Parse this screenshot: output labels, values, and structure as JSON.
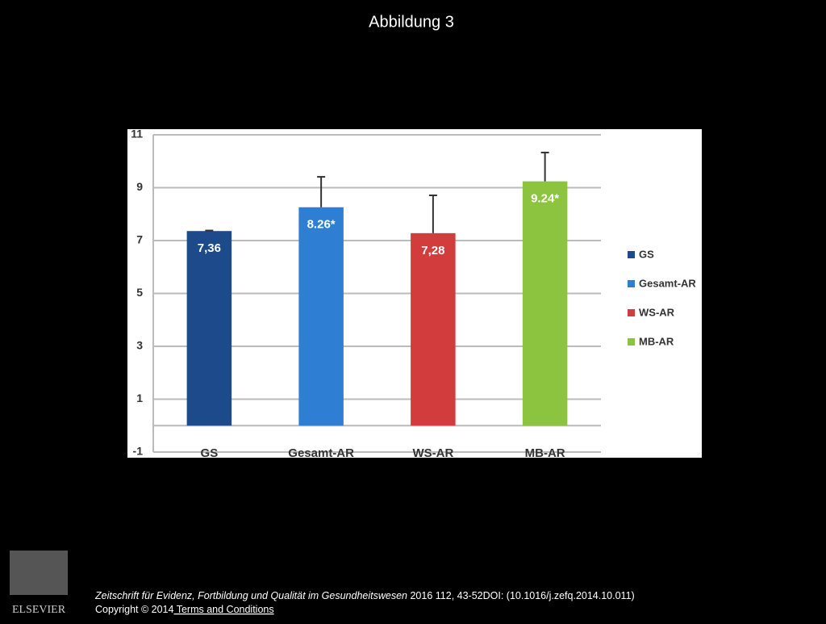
{
  "slide_title": "Abbildung 3",
  "chart_data": {
    "type": "bar",
    "categories": [
      "GS",
      "Gesamt-AR",
      "WS-AR",
      "MB-AR"
    ],
    "values": [
      7.36,
      8.26,
      7.28,
      9.24
    ],
    "value_labels": [
      "7,36",
      "8.26*",
      "7,28",
      "9.24*"
    ],
    "errors": [
      0.02,
      1.15,
      1.43,
      1.09
    ],
    "colors": [
      "#1d4a8a",
      "#2e7fd4",
      "#d23c3c",
      "#8cc43f"
    ],
    "ylim": [
      -1,
      11
    ],
    "yticks": [
      -1,
      1,
      3,
      5,
      7,
      9,
      11
    ],
    "grid": true
  },
  "footer": {
    "journal": "Zeitschrift für Evidenz, Fortbildung und Qualität im Gesundheitswesen",
    "citation": "2016 112, 43-52DOI: (10.1016/j.zefq.2014.10.011)",
    "copyright": "Copyright © 2014",
    "link": " Terms and Conditions",
    "logo": "ELSEVIER"
  }
}
